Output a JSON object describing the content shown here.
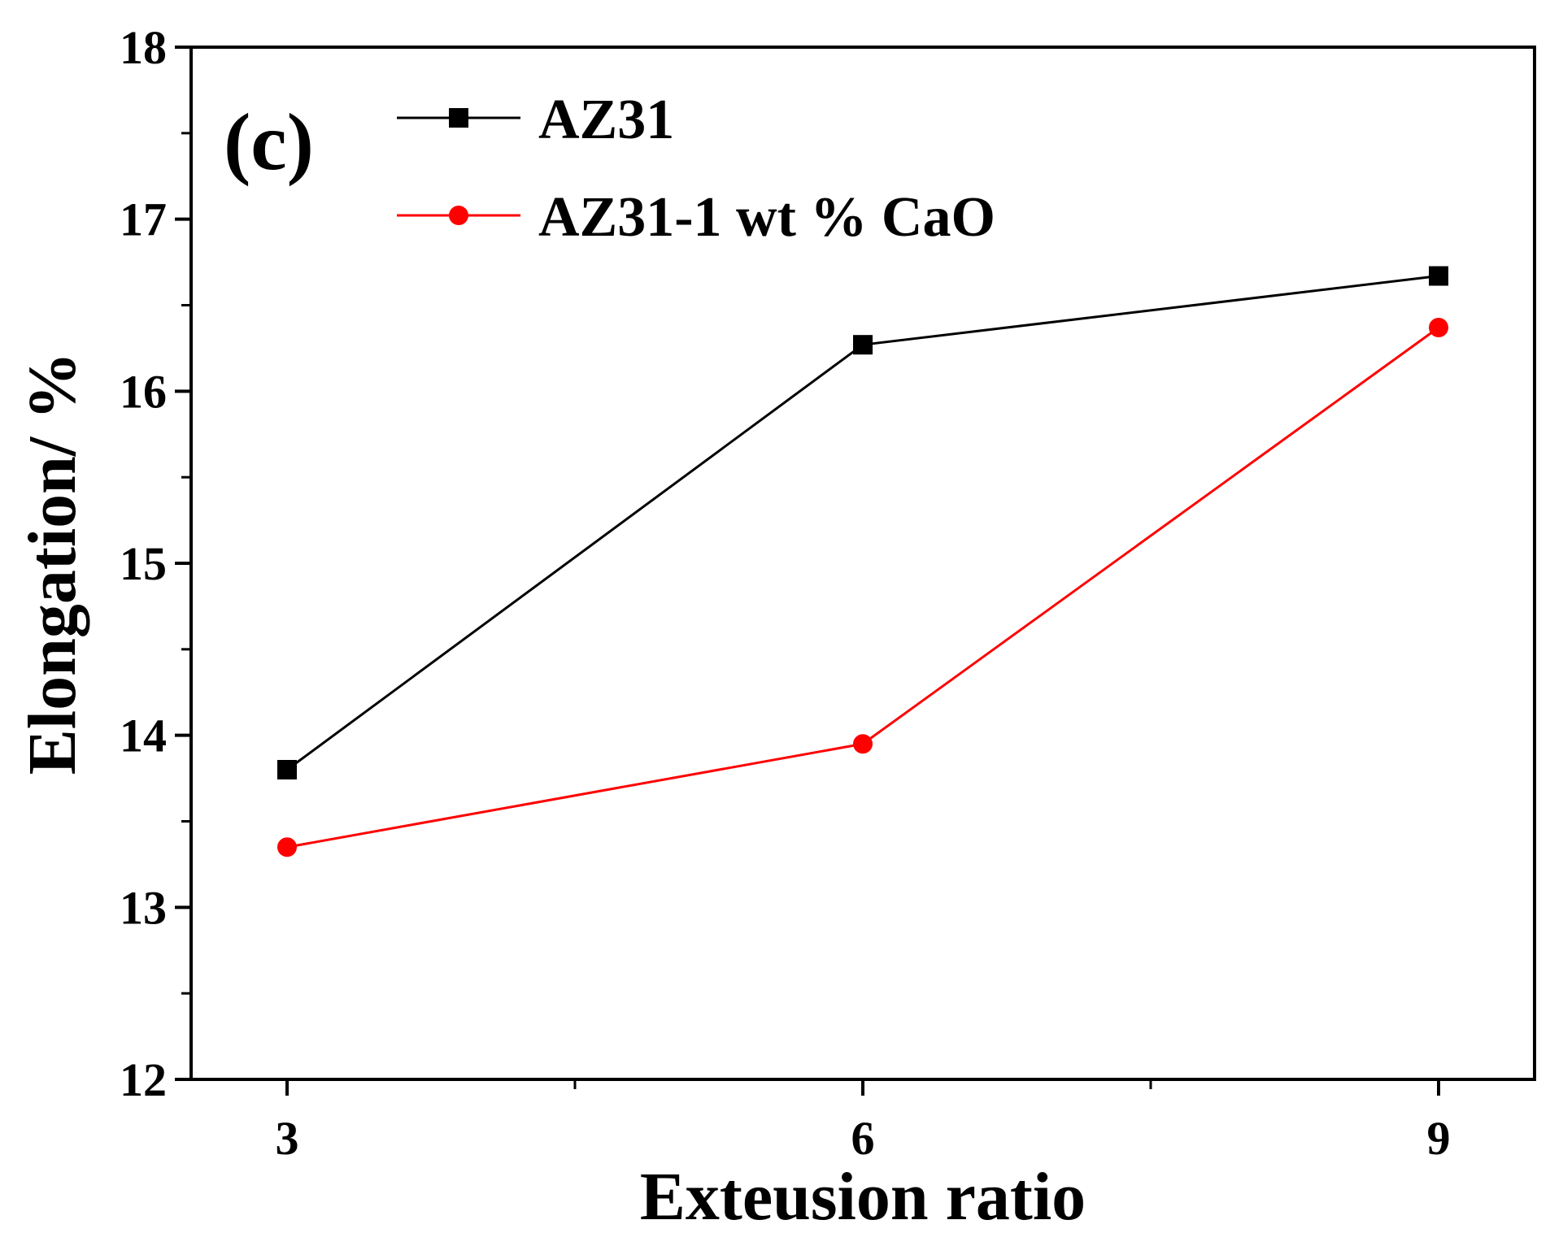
{
  "chart_data": {
    "type": "line",
    "panel_label": "(c)",
    "title": "",
    "xlabel": "Exteusion ratio",
    "ylabel": "Elongation/ %",
    "x": [
      3,
      6,
      9
    ],
    "x_ticks": [
      "3",
      "6",
      "9"
    ],
    "xlim": [
      2.5,
      9.5
    ],
    "y_ticks": [
      "12",
      "13",
      "14",
      "15",
      "16",
      "17",
      "18"
    ],
    "ylim": [
      12,
      18
    ],
    "legend_position": "top-left",
    "series": [
      {
        "name": "AZ31",
        "color": "#000000",
        "marker": "square",
        "values": [
          13.8,
          16.27,
          16.67
        ]
      },
      {
        "name": "AZ31-1 wt % CaO",
        "color": "#ff0000",
        "marker": "circle",
        "values": [
          13.35,
          13.95,
          16.37
        ]
      }
    ]
  }
}
